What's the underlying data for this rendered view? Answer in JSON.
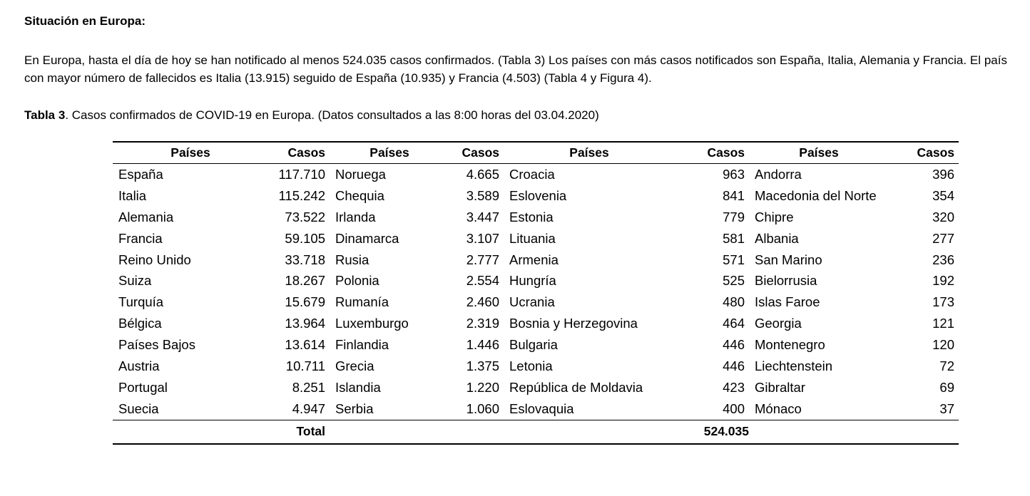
{
  "heading": "Situación en Europa:",
  "paragraph": "En Europa, hasta el día de hoy se han notificado al menos 524.035 casos confirmados. (Tabla 3) Los países con más casos notificados son España, Italia, Alemania y Francia.  El país con mayor número de fallecidos es Italia (13.915) seguido de España (10.935) y Francia (4.503) (Tabla 4 y Figura 4).",
  "caption": {
    "label": "Tabla 3",
    "text": ". Casos confirmados de COVID-19 en Europa. (Datos consultados a las 8:00 horas del 03.04.2020)"
  },
  "table": {
    "headers": {
      "country": "Países",
      "cases": "Casos"
    },
    "rows": [
      [
        [
          "España",
          "117.710"
        ],
        [
          "Noruega",
          "4.665"
        ],
        [
          "Croacia",
          "963"
        ],
        [
          "Andorra",
          "396"
        ]
      ],
      [
        [
          "Italia",
          "115.242"
        ],
        [
          "Chequia",
          "3.589"
        ],
        [
          "Eslovenia",
          "841"
        ],
        [
          "Macedonia del Norte",
          "354"
        ]
      ],
      [
        [
          "Alemania",
          "73.522"
        ],
        [
          "Irlanda",
          "3.447"
        ],
        [
          "Estonia",
          "779"
        ],
        [
          "Chipre",
          "320"
        ]
      ],
      [
        [
          "Francia",
          "59.105"
        ],
        [
          "Dinamarca",
          "3.107"
        ],
        [
          "Lituania",
          "581"
        ],
        [
          "Albania",
          "277"
        ]
      ],
      [
        [
          "Reino Unido",
          "33.718"
        ],
        [
          "Rusia",
          "2.777"
        ],
        [
          "Armenia",
          "571"
        ],
        [
          "San Marino",
          "236"
        ]
      ],
      [
        [
          "Suiza",
          "18.267"
        ],
        [
          "Polonia",
          "2.554"
        ],
        [
          "Hungría",
          "525"
        ],
        [
          "Bielorrusia",
          "192"
        ]
      ],
      [
        [
          "Turquía",
          "15.679"
        ],
        [
          "Rumanía",
          "2.460"
        ],
        [
          "Ucrania",
          "480"
        ],
        [
          "Islas Faroe",
          "173"
        ]
      ],
      [
        [
          "Bélgica",
          "13.964"
        ],
        [
          "Luxemburgo",
          "2.319"
        ],
        [
          "Bosnia y Herzegovina",
          "464"
        ],
        [
          "Georgia",
          "121"
        ]
      ],
      [
        [
          "Países Bajos",
          "13.614"
        ],
        [
          "Finlandia",
          "1.446"
        ],
        [
          "Bulgaria",
          "446"
        ],
        [
          "Montenegro",
          "120"
        ]
      ],
      [
        [
          "Austria",
          "10.711"
        ],
        [
          "Grecia",
          "1.375"
        ],
        [
          "Letonia",
          "446"
        ],
        [
          "Liechtenstein",
          "72"
        ]
      ],
      [
        [
          "Portugal",
          "8.251"
        ],
        [
          "Islandia",
          "1.220"
        ],
        [
          "República de Moldavia",
          "423"
        ],
        [
          "Gibraltar",
          "69"
        ]
      ],
      [
        [
          "Suecia",
          "4.947"
        ],
        [
          "Serbia",
          "1.060"
        ],
        [
          "Eslovaquia",
          "400"
        ],
        [
          "Mónaco",
          "37"
        ]
      ]
    ],
    "total_label": "Total",
    "total_value": "524.035"
  }
}
